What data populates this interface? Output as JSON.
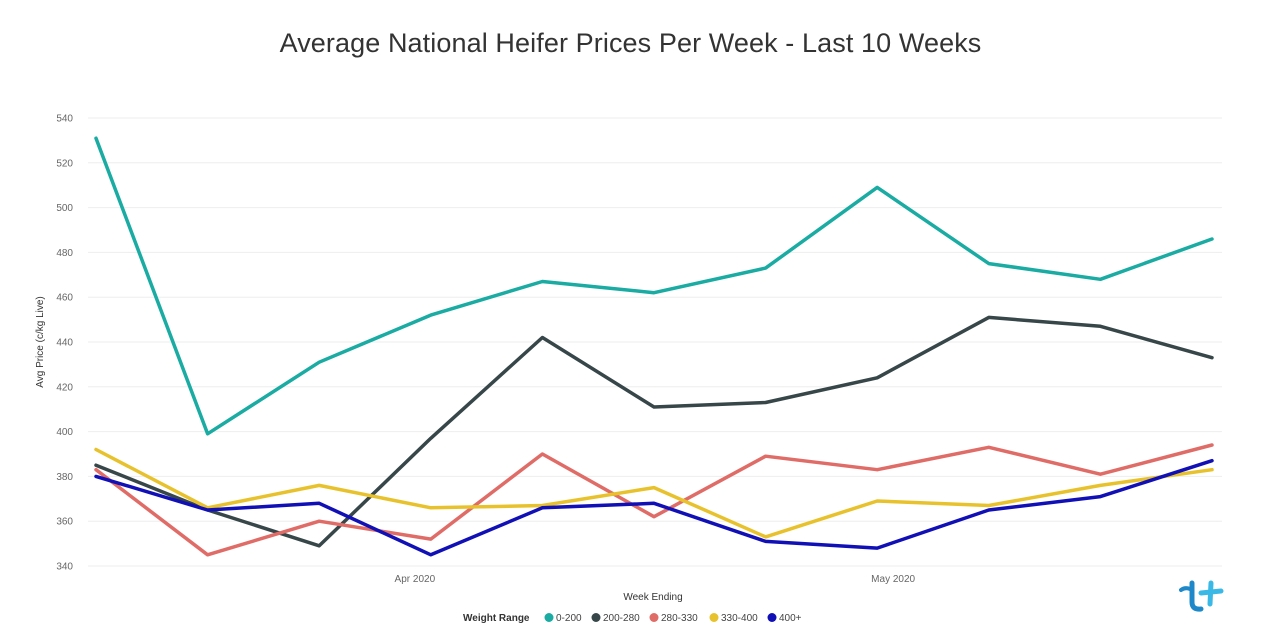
{
  "chart_data": {
    "type": "line",
    "title": "Average National Heifer Prices Per Week - Last 10 Weeks",
    "xlabel": "Week Ending",
    "ylabel": "Avg Price (c/kg Live)",
    "ylim": [
      340,
      540
    ],
    "yticks": [
      340,
      360,
      380,
      400,
      420,
      440,
      460,
      480,
      500,
      520,
      540
    ],
    "x": [
      "2020-03-12",
      "2020-03-19",
      "2020-03-26",
      "2020-04-02",
      "2020-04-09",
      "2020-04-16",
      "2020-04-23",
      "2020-04-30",
      "2020-05-07",
      "2020-05-14",
      "2020-05-21"
    ],
    "xticks": [
      {
        "label": "Apr 2020",
        "x": "2020-04-01"
      },
      {
        "label": "May 2020",
        "x": "2020-05-01"
      }
    ],
    "grid": true,
    "legend": {
      "title": "Weight Range",
      "placement": "bottom"
    },
    "series": [
      {
        "name": "0-200",
        "color": "#1aaba3",
        "values": [
          531,
          399,
          431,
          452,
          467,
          462,
          473,
          509,
          475,
          468,
          486
        ]
      },
      {
        "name": "200-280",
        "color": "#374649",
        "values": [
          385,
          365,
          349,
          397,
          442,
          411,
          413,
          424,
          451,
          447,
          433
        ]
      },
      {
        "name": "280-330",
        "color": "#e06c67",
        "values": [
          383,
          345,
          360,
          352,
          390,
          362,
          389,
          383,
          393,
          381,
          394
        ]
      },
      {
        "name": "330-400",
        "color": "#e8c22c",
        "values": [
          392,
          366,
          376,
          366,
          367,
          375,
          353,
          369,
          367,
          376,
          383
        ]
      },
      {
        "name": "400+",
        "color": "#1010b6",
        "values": [
          380,
          365,
          368,
          345,
          366,
          368,
          351,
          348,
          365,
          371,
          387
        ]
      }
    ]
  }
}
